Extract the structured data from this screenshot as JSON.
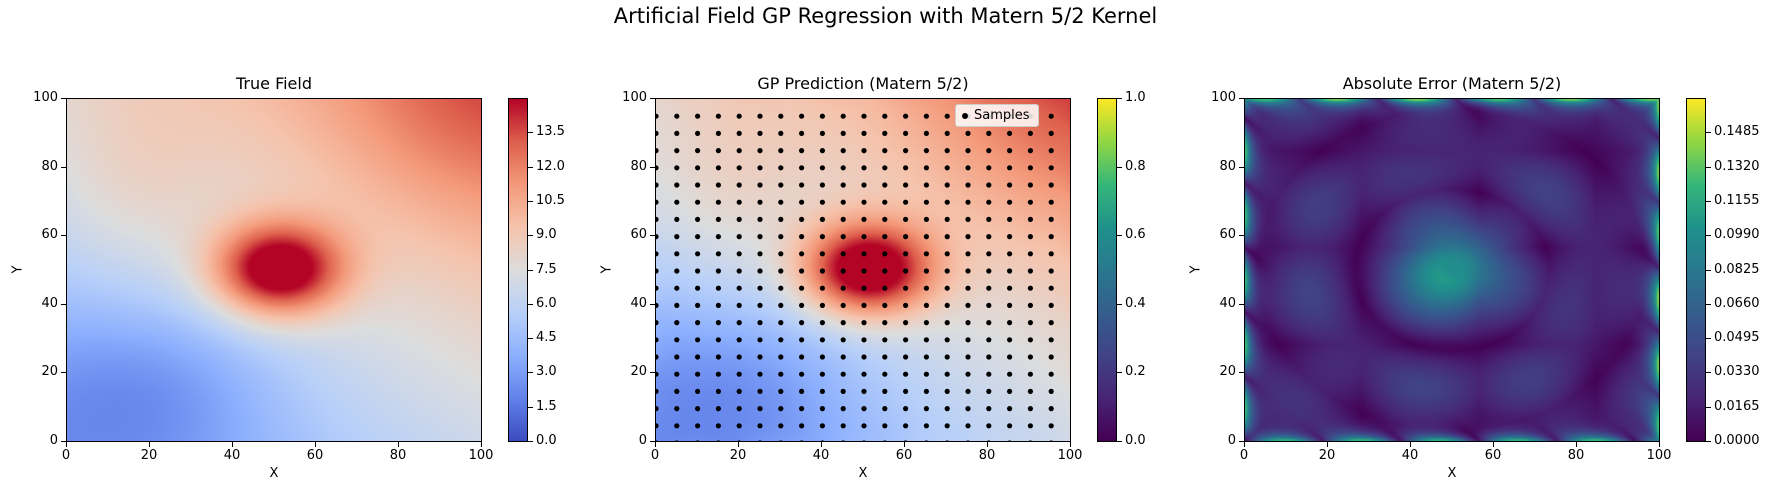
{
  "figure_title": "Artificial Field GP Regression with Matern 5/2 Kernel",
  "chart_data": [
    {
      "type": "heatmap",
      "title": "True Field",
      "xlabel": "X",
      "ylabel": "Y",
      "xlim": [
        0,
        100
      ],
      "ylim": [
        0,
        100
      ],
      "x_ticks": [
        "0",
        "20",
        "40",
        "60",
        "80",
        "100"
      ],
      "y_ticks": [
        "0",
        "20",
        "40",
        "60",
        "80",
        "100"
      ],
      "colormap": "coolwarm",
      "value_range": [
        0,
        15
      ],
      "colorbar_ticks": [
        "0.0",
        "1.5",
        "3.0",
        "4.5",
        "6.0",
        "7.5",
        "9.0",
        "10.5",
        "12.0",
        "13.5"
      ],
      "peak": {
        "x": 50,
        "y": 50,
        "value": 15
      }
    },
    {
      "type": "heatmap",
      "title": "GP Prediction (Matern 5/2)",
      "xlabel": "X",
      "ylabel": "Y",
      "xlim": [
        0,
        100
      ],
      "ylim": [
        0,
        100
      ],
      "x_ticks": [
        "0",
        "20",
        "40",
        "60",
        "80",
        "100"
      ],
      "y_ticks": [
        "0",
        "20",
        "40",
        "60",
        "80",
        "100"
      ],
      "colormap": "coolwarm",
      "colorbar_colormap": "viridis",
      "colorbar_ticks": [
        "0.0",
        "0.2",
        "0.4",
        "0.6",
        "0.8",
        "1.0"
      ],
      "legend": {
        "label": "Samples",
        "position": "upper right"
      },
      "samples": {
        "x_start": 0,
        "x_step": 5,
        "y_start": 0,
        "y_step": 5,
        "count_x": 20,
        "count_y": 20,
        "color": "#000000"
      }
    },
    {
      "type": "heatmap",
      "title": "Absolute Error (Matern 5/2)",
      "xlabel": "X",
      "ylabel": "Y",
      "xlim": [
        0,
        100
      ],
      "ylim": [
        0,
        100
      ],
      "x_ticks": [
        "0",
        "20",
        "40",
        "60",
        "80",
        "100"
      ],
      "y_ticks": [
        "0",
        "20",
        "40",
        "60",
        "80",
        "100"
      ],
      "colormap": "viridis",
      "value_range": [
        0,
        0.165
      ],
      "colorbar_ticks": [
        "0.0000",
        "0.0165",
        "0.0330",
        "0.0495",
        "0.0660",
        "0.0825",
        "0.0990",
        "0.1155",
        "0.1320",
        "0.1485"
      ]
    }
  ]
}
